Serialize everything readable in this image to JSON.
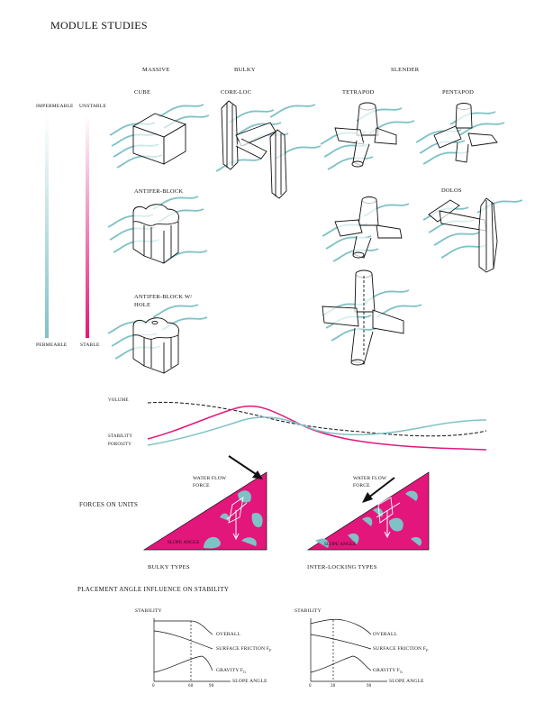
{
  "page_title": "MODULE STUDIES",
  "categories": [
    "MASSIVE",
    "BULKY",
    "SLENDER"
  ],
  "modules": {
    "cube": "CUBE",
    "core_loc": "CORE-LOC",
    "tetrapod": "TETRAPOD",
    "pentapod": "PENTAPOD",
    "antifer_block": "ANTIFER-BLOCK",
    "dolos": "DOLOS",
    "antifer_hole_line1": "ANTIFER-BLOCK W/",
    "antifer_hole_line2": "HOLE"
  },
  "scales": {
    "permeability_top": "IMPERMEABLE",
    "permeability_bottom": "PERMEABLE",
    "stability_top": "UNSTABLE",
    "stability_bottom": "STABLE"
  },
  "colors": {
    "teal": "#7fc2c6",
    "magenta": "#e3167c",
    "black": "#111111"
  },
  "trend_chart": {
    "series": [
      "VOLUME",
      "STABILITY",
      "POROSITY"
    ]
  },
  "forces": {
    "heading": "FORCES ON UNITS",
    "water_flow_1": "WATER FLOW",
    "force_1": "FORCE",
    "water_flow_2": "WATER FLOW",
    "force_2": "FORCE",
    "slope_angle_1": "SLOPE ANGLE",
    "slope_angle_2": "SLOPE ANGLE",
    "bulky_types": "BULKY TYPES",
    "interlocking_types": "INTER-LOCKING TYPES"
  },
  "placement": {
    "heading": "PLACEMENT ANGLE INFLUENCE ON STABILITY",
    "chart1": {
      "ylabel": "STABILITY",
      "overall": "OVERALL",
      "friction": "SURFACE FRICTION F",
      "friction_sub": "f",
      "gravity": "GRAVITY F",
      "gravity_sub": "g",
      "xlabel": "SLOPE ANGLE",
      "ticks": [
        "0",
        "60",
        "90"
      ]
    },
    "chart2": {
      "ylabel": "STABILITY",
      "overall": "OVERALL",
      "friction": "SURFACE FRICTION F",
      "friction_sub": "f",
      "gravity": "GRAVITY F",
      "gravity_sub": "g",
      "xlabel": "SLOPE ANGLE",
      "ticks": [
        "0",
        "30",
        "90"
      ]
    }
  }
}
